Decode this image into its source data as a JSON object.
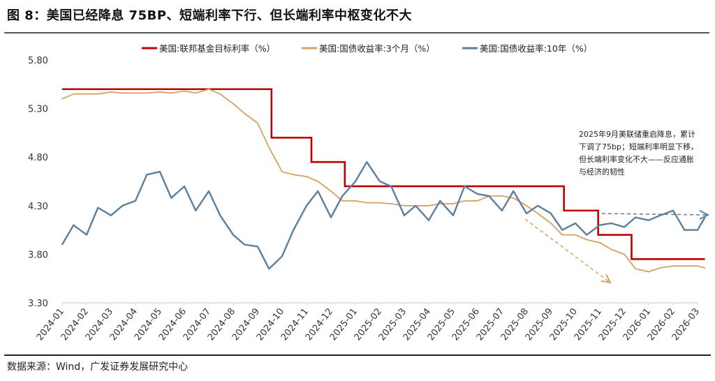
{
  "title": "图 8：美国已经降息 75BP、短端利率下行、但长端利率中枢变化不大",
  "source": "数据来源：Wind，广发证券发展研究中心",
  "chart_data": {
    "type": "line",
    "title": "图 8：美国已经降息 75BP、短端利率下行、但长端利率中枢变化不大",
    "ylim": [
      3.3,
      5.8
    ],
    "yticks": [
      "5.80",
      "5.30",
      "4.80",
      "4.30",
      "3.80",
      "3.30"
    ],
    "xticks": [
      "2024-01",
      "2024-02",
      "2024-03",
      "2024-04",
      "2024-05",
      "2024-06",
      "2024-07",
      "2024-08",
      "2024-09",
      "2024-10",
      "2024-11",
      "2024-12",
      "2025-01",
      "2025-02",
      "2025-03",
      "2025-04",
      "2025-05",
      "2025-06",
      "2025-07",
      "2025-08",
      "2025-09",
      "2025-10",
      "2025-11",
      "2025-12",
      "2026-01",
      "2026-02",
      "2026-03"
    ],
    "grid": false,
    "legend_position": "top",
    "annotation": [
      "2025年9月美联储重启降息，累计",
      "下调了75bp；短端利率明显下移，",
      "但长端利率变化不大——反应通胀",
      "与经济的韧性"
    ],
    "x": [
      "2024-01-01",
      "2024-01-15",
      "2024-02-01",
      "2024-02-15",
      "2024-03-01",
      "2024-03-15",
      "2024-04-01",
      "2024-04-15",
      "2024-05-01",
      "2024-05-15",
      "2024-06-01",
      "2024-06-15",
      "2024-07-01",
      "2024-07-15",
      "2024-08-01",
      "2024-08-15",
      "2024-09-01",
      "2024-09-15",
      "2024-10-01",
      "2024-10-15",
      "2024-11-01",
      "2024-11-15",
      "2024-12-01",
      "2024-12-15",
      "2025-01-01",
      "2025-01-15",
      "2025-02-01",
      "2025-02-15",
      "2025-03-01",
      "2025-03-15",
      "2025-04-01",
      "2025-04-15",
      "2025-05-01",
      "2025-05-15",
      "2025-06-01",
      "2025-06-15",
      "2025-07-01",
      "2025-07-15",
      "2025-08-01",
      "2025-08-15",
      "2025-09-01",
      "2025-09-15",
      "2025-10-01",
      "2025-10-15",
      "2025-11-01",
      "2025-11-15",
      "2025-12-01",
      "2025-12-15",
      "2026-01-01",
      "2026-01-15",
      "2026-02-01",
      "2026-02-15",
      "2026-03-01",
      "2026-03-10"
    ],
    "series": [
      {
        "name": "美国:联邦基金目标利率（%）",
        "color": "#C00000",
        "step": true,
        "steps": [
          [
            "2024-01-01",
            5.5
          ],
          [
            "2024-09-18",
            5.0
          ],
          [
            "2024-11-07",
            4.75
          ],
          [
            "2024-12-18",
            4.5
          ],
          [
            "2025-09-17",
            4.25
          ],
          [
            "2025-10-29",
            4.0
          ],
          [
            "2025-12-10",
            3.75
          ],
          [
            "2026-03-10",
            3.75
          ]
        ]
      },
      {
        "name": "美国:国债收益率:3个月（%）",
        "color": "#D4A261",
        "values": [
          5.4,
          5.45,
          5.45,
          5.45,
          5.47,
          5.46,
          5.46,
          5.46,
          5.47,
          5.46,
          5.48,
          5.46,
          5.5,
          5.45,
          5.35,
          5.25,
          5.15,
          4.9,
          4.65,
          4.62,
          4.6,
          4.55,
          4.45,
          4.35,
          4.35,
          4.33,
          4.33,
          4.32,
          4.3,
          4.3,
          4.3,
          4.32,
          4.32,
          4.35,
          4.35,
          4.4,
          4.4,
          4.38,
          4.3,
          4.22,
          4.12,
          4.0,
          4.0,
          3.95,
          3.92,
          3.85,
          3.8,
          3.65,
          3.62,
          3.66,
          3.68,
          3.68,
          3.68,
          3.66
        ]
      },
      {
        "name": "美国:国债收益率:10年（%）",
        "color": "#5B7F9E",
        "values": [
          3.9,
          4.1,
          4.0,
          4.28,
          4.2,
          4.3,
          4.35,
          4.62,
          4.65,
          4.38,
          4.5,
          4.25,
          4.45,
          4.2,
          4.0,
          3.9,
          3.88,
          3.65,
          3.78,
          4.05,
          4.3,
          4.45,
          4.18,
          4.4,
          4.55,
          4.75,
          4.55,
          4.5,
          4.2,
          4.3,
          4.15,
          4.35,
          4.2,
          4.5,
          4.42,
          4.4,
          4.25,
          4.45,
          4.22,
          4.3,
          4.22,
          4.05,
          4.12,
          4.0,
          4.1,
          4.12,
          4.08,
          4.18,
          4.15,
          4.2,
          4.25,
          4.05,
          4.05,
          4.18
        ]
      }
    ]
  }
}
